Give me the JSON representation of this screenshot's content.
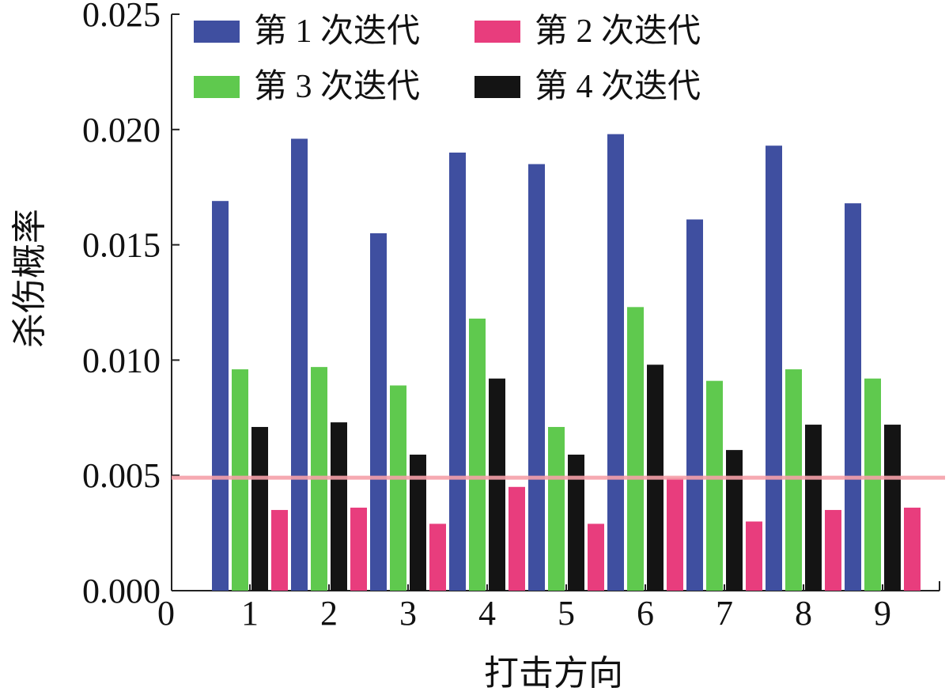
{
  "chart_data": {
    "type": "bar",
    "title": "",
    "xlabel": "打击方向",
    "ylabel": "杀伤概率",
    "x_origin_label": "0",
    "categories": [
      "1",
      "2",
      "3",
      "4",
      "5",
      "6",
      "7",
      "8",
      "9"
    ],
    "ylim": [
      0,
      0.025
    ],
    "yticks": [
      "0.000",
      "0.005",
      "0.010",
      "0.015",
      "0.020",
      "0.025"
    ],
    "series": [
      {
        "name": "第 1 次迭代",
        "color": "#3f4fa0",
        "values": [
          0.0169,
          0.0196,
          0.0155,
          0.019,
          0.0185,
          0.0198,
          0.0161,
          0.0193,
          0.0168
        ]
      },
      {
        "name": "第 2 次迭代",
        "color": "#e83d7d",
        "values": [
          0.0035,
          0.0036,
          0.0029,
          0.0045,
          0.0029,
          0.0049,
          0.003,
          0.0035,
          0.0036
        ]
      },
      {
        "name": "第 3 次迭代",
        "color": "#5fc94e",
        "values": [
          0.0096,
          0.0097,
          0.0089,
          0.0118,
          0.0071,
          0.0123,
          0.0091,
          0.0096,
          0.0092
        ]
      },
      {
        "name": "第 4 次迭代",
        "color": "#141414",
        "values": [
          0.0071,
          0.0073,
          0.0059,
          0.0092,
          0.0059,
          0.0098,
          0.0061,
          0.0072,
          0.0072
        ]
      }
    ],
    "bar_order": [
      0,
      2,
      3,
      1
    ],
    "reference_line": {
      "value": 0.0049,
      "color": "#f5a0a8"
    },
    "legend_placement": "top",
    "grid": false
  }
}
